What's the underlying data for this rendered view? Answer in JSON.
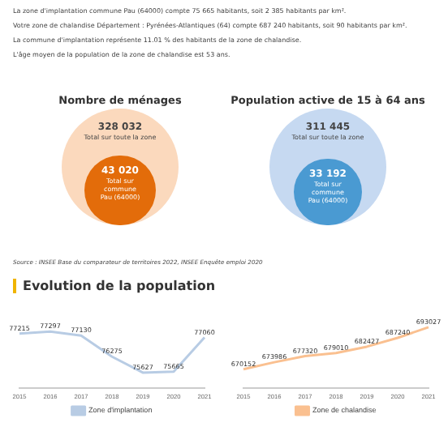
{
  "chart_data": [
    {
      "type": "other",
      "annotations": [
        "La zone d'implantation commune Pau (64000) compte 75 665 habitants, soit 2 385 habitants par km².",
        "Votre zone de chalandise Département : Pyrénées-Atlantiques (64) compte 687 240 habitants, soit 90 habitants par km².",
        "La commune d'implantation représente 11.01 % des habitants de la zone de chalandise.",
        "L'âge moyen de la population de la zone de chalandise est 53 ans."
      ]
    },
    {
      "type": "other",
      "title": "Nombre de ménages",
      "categories": [
        "Total sur toute la zone",
        "Total sur commune Pau (64000)"
      ],
      "values": [
        328032,
        43020
      ],
      "value_labels": [
        "328 032",
        "43 020"
      ],
      "colors": [
        "#fbd9bd",
        "#e36c0a"
      ]
    },
    {
      "type": "other",
      "title": "Population active de 15 à 64 ans",
      "categories": [
        "Total sur toute la zone",
        "Total sur commune Pau (64000)"
      ],
      "values": [
        311445,
        33192
      ],
      "value_labels": [
        "311 445",
        "33 192"
      ],
      "colors": [
        "#c6d9f1",
        "#4a9ad2"
      ],
      "annotations": [
        "Source : INSEE Base du comparateur de territoires 2022, INSEE Enquête emploi 2020"
      ]
    },
    {
      "type": "line",
      "title": "Evolution de la population",
      "categories": [
        "2015",
        "2016",
        "2017",
        "2018",
        "2019",
        "2020",
        "2021"
      ],
      "series": [
        {
          "name": "Zone d'implantation",
          "color": "#b8cce4",
          "values": [
            77215,
            77297,
            77130,
            76275,
            75627,
            75665,
            77060
          ]
        }
      ],
      "data_labels": true,
      "legend": "bottom",
      "grid": false,
      "marker": "none"
    },
    {
      "type": "line",
      "categories": [
        "2015",
        "2016",
        "2017",
        "2018",
        "2019",
        "2020",
        "2021"
      ],
      "series": [
        {
          "name": "Zone de chalandise",
          "color": "#fac090",
          "values": [
            670152,
            673986,
            677320,
            679010,
            682427,
            687240,
            693027
          ]
        }
      ],
      "data_labels": true,
      "legend": "bottom",
      "grid": false,
      "marker": "none"
    }
  ]
}
